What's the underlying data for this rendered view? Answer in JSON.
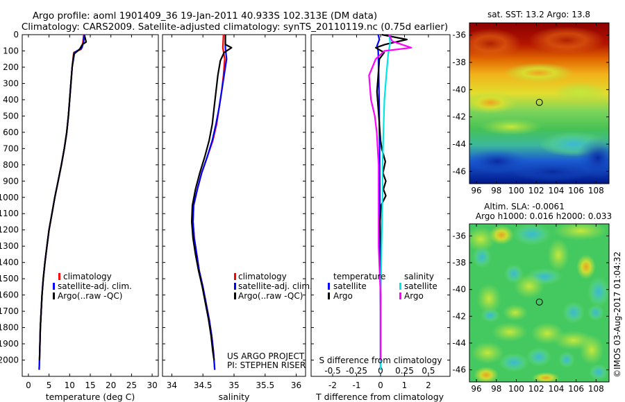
{
  "figure": {
    "title_line1": "Argo profile: aoml 1901409_36 19-Jan-2011 40.933S 102.313E (DM data)",
    "title_line2": "Climatology: CARS2009. Satellite-adjusted climatology: synTS_20110119.nc (0.75d earlier)",
    "credit": "©IMOS 03-Aug-2017 01:04:32",
    "project_line1": "US ARGO PROJECT",
    "project_line2": "PI: STEPHEN RISER"
  },
  "colors": {
    "climatology": "#ff0000",
    "satellite": "#0000ff",
    "argo": "#000000",
    "salinity_satellite": "#00e5e5",
    "salinity_argo": "#ff00ff"
  },
  "legends": {
    "profile": [
      "climatology",
      "satellite-adj. clim.",
      "Argo(..raw -QC)"
    ],
    "diff_temperature_title": "temperature",
    "diff_salinity_title": "salinity",
    "diff_satellite": "satellite",
    "diff_argo": "Argo"
  },
  "chart_data": [
    {
      "id": "temperature",
      "type": "line",
      "title": "",
      "xlabel": "temperature (deg C)",
      "ylabel": "",
      "xlim": [
        -1.5,
        31.5
      ],
      "ylim": [
        2100,
        0
      ],
      "xticks": [
        0,
        5,
        10,
        15,
        20,
        25,
        30
      ],
      "yticks": [
        0,
        100,
        200,
        300,
        400,
        500,
        600,
        700,
        800,
        900,
        1000,
        1100,
        1200,
        1300,
        1400,
        1500,
        1600,
        1700,
        1800,
        1900,
        2000
      ],
      "series": [
        {
          "name": "climatology",
          "color": "#ff0000",
          "points": [
            [
              13.4,
              0
            ],
            [
              13.2,
              50
            ],
            [
              12.8,
              90
            ],
            [
              11.0,
              110
            ],
            [
              10.6,
              200
            ],
            [
              10.3,
              300
            ],
            [
              10.0,
              400
            ],
            [
              9.7,
              500
            ],
            [
              9.3,
              600
            ],
            [
              8.7,
              700
            ],
            [
              8.0,
              800
            ],
            [
              7.2,
              900
            ],
            [
              6.4,
              1000
            ],
            [
              5.7,
              1100
            ],
            [
              5.0,
              1200
            ],
            [
              4.5,
              1300
            ],
            [
              4.0,
              1400
            ],
            [
              3.6,
              1500
            ],
            [
              3.3,
              1600
            ],
            [
              3.1,
              1700
            ],
            [
              2.9,
              1800
            ],
            [
              2.8,
              1900
            ],
            [
              2.7,
              2000
            ],
            [
              2.6,
              2060
            ]
          ]
        },
        {
          "name": "satellite-adj. clim.",
          "color": "#0000ff",
          "points": [
            [
              13.6,
              0
            ],
            [
              13.4,
              40
            ],
            [
              13.0,
              80
            ],
            [
              11.2,
              110
            ],
            [
              10.6,
              200
            ],
            [
              10.3,
              300
            ],
            [
              10.0,
              400
            ],
            [
              9.7,
              500
            ],
            [
              9.3,
              600
            ],
            [
              8.7,
              700
            ],
            [
              8.0,
              800
            ],
            [
              7.2,
              900
            ],
            [
              6.4,
              1000
            ],
            [
              5.7,
              1100
            ],
            [
              5.0,
              1200
            ],
            [
              4.5,
              1300
            ],
            [
              4.0,
              1400
            ],
            [
              3.6,
              1500
            ],
            [
              3.3,
              1600
            ],
            [
              3.1,
              1700
            ],
            [
              2.9,
              1800
            ],
            [
              2.8,
              1900
            ],
            [
              2.7,
              2000
            ],
            [
              2.6,
              2060
            ]
          ]
        },
        {
          "name": "Argo(..raw -QC)",
          "color": "#000000",
          "points": [
            [
              13.6,
              5
            ],
            [
              14.0,
              45
            ],
            [
              13.1,
              60
            ],
            [
              12.4,
              90
            ],
            [
              11.0,
              120
            ],
            [
              10.6,
              200
            ],
            [
              10.3,
              300
            ],
            [
              10.0,
              400
            ],
            [
              9.7,
              500
            ],
            [
              9.3,
              600
            ],
            [
              8.7,
              700
            ],
            [
              8.0,
              800
            ],
            [
              7.2,
              900
            ],
            [
              6.4,
              1000
            ],
            [
              5.7,
              1100
            ],
            [
              5.0,
              1200
            ],
            [
              4.5,
              1300
            ],
            [
              4.0,
              1400
            ],
            [
              3.6,
              1500
            ],
            [
              3.3,
              1600
            ],
            [
              3.1,
              1700
            ],
            [
              2.9,
              1800
            ],
            [
              2.8,
              1900
            ],
            [
              2.7,
              2000
            ]
          ]
        }
      ]
    },
    {
      "id": "salinity",
      "type": "line",
      "title": "",
      "xlabel": "salinity",
      "ylabel": "",
      "xlim": [
        33.85,
        36.15
      ],
      "ylim": [
        2100,
        0
      ],
      "xticks": [
        34,
        34.5,
        35,
        35.5,
        36
      ],
      "series": [
        {
          "name": "climatology",
          "color": "#ff0000",
          "points": [
            [
              34.83,
              0
            ],
            [
              34.82,
              80
            ],
            [
              34.85,
              150
            ],
            [
              34.83,
              250
            ],
            [
              34.8,
              350
            ],
            [
              34.76,
              450
            ],
            [
              34.72,
              550
            ],
            [
              34.66,
              650
            ],
            [
              34.57,
              750
            ],
            [
              34.48,
              850
            ],
            [
              34.41,
              950
            ],
            [
              34.35,
              1050
            ],
            [
              34.34,
              1150
            ],
            [
              34.36,
              1250
            ],
            [
              34.4,
              1350
            ],
            [
              34.44,
              1450
            ],
            [
              34.5,
              1550
            ],
            [
              34.55,
              1650
            ],
            [
              34.6,
              1750
            ],
            [
              34.64,
              1850
            ],
            [
              34.67,
              1950
            ],
            [
              34.69,
              2060
            ]
          ]
        },
        {
          "name": "satellite-adj. clim.",
          "color": "#0000ff",
          "points": [
            [
              34.86,
              0
            ],
            [
              34.86,
              80
            ],
            [
              34.88,
              150
            ],
            [
              34.84,
              250
            ],
            [
              34.8,
              350
            ],
            [
              34.76,
              450
            ],
            [
              34.71,
              550
            ],
            [
              34.65,
              650
            ],
            [
              34.57,
              750
            ],
            [
              34.48,
              850
            ],
            [
              34.41,
              950
            ],
            [
              34.35,
              1050
            ],
            [
              34.34,
              1150
            ],
            [
              34.36,
              1250
            ],
            [
              34.4,
              1350
            ],
            [
              34.44,
              1450
            ],
            [
              34.5,
              1550
            ],
            [
              34.55,
              1650
            ],
            [
              34.6,
              1750
            ],
            [
              34.64,
              1850
            ],
            [
              34.67,
              1950
            ],
            [
              34.69,
              2060
            ]
          ]
        },
        {
          "name": "Argo(..raw -QC)",
          "color": "#000000",
          "points": [
            [
              34.86,
              0
            ],
            [
              34.86,
              60
            ],
            [
              34.96,
              80
            ],
            [
              34.84,
              110
            ],
            [
              34.78,
              160
            ],
            [
              34.74,
              250
            ],
            [
              34.71,
              350
            ],
            [
              34.68,
              450
            ],
            [
              34.65,
              550
            ],
            [
              34.6,
              650
            ],
            [
              34.53,
              750
            ],
            [
              34.45,
              850
            ],
            [
              34.38,
              950
            ],
            [
              34.33,
              1050
            ],
            [
              34.32,
              1150
            ],
            [
              34.34,
              1250
            ],
            [
              34.38,
              1350
            ],
            [
              34.43,
              1450
            ],
            [
              34.49,
              1550
            ],
            [
              34.54,
              1650
            ],
            [
              34.59,
              1750
            ],
            [
              34.63,
              1850
            ],
            [
              34.66,
              1950
            ],
            [
              34.68,
              2000
            ]
          ]
        }
      ]
    },
    {
      "id": "difference",
      "type": "line",
      "title": "",
      "xlabel": "T difference from climatology",
      "x2label": "S difference from climatology",
      "xlim": [
        -2.9,
        2.9
      ],
      "ylim": [
        2100,
        0
      ],
      "xticks": [
        -2,
        -1,
        0,
        1,
        2
      ],
      "x2ticks": [
        -0.5,
        -0.25,
        0,
        0.25,
        0.5
      ],
      "x2tick_labels": [
        "-0.5",
        "-0.25",
        "0",
        "0.25",
        "0.5"
      ],
      "series": [
        {
          "name": "temperature satellite",
          "color": "#0000ff",
          "points": [
            [
              -0.1,
              0
            ],
            [
              -0.05,
              30
            ],
            [
              -0.15,
              70
            ],
            [
              -0.1,
              100
            ],
            [
              -0.08,
              200
            ],
            [
              -0.06,
              400
            ],
            [
              -0.04,
              700
            ],
            [
              -0.03,
              1000
            ],
            [
              -0.02,
              1300
            ],
            [
              0,
              1700
            ],
            [
              0,
              2060
            ]
          ]
        },
        {
          "name": "temperature Argo",
          "color": "#000000",
          "points": [
            [
              0.05,
              0
            ],
            [
              1.1,
              30
            ],
            [
              0.2,
              60
            ],
            [
              -0.2,
              80
            ],
            [
              0.15,
              110
            ],
            [
              -0.05,
              150
            ],
            [
              -0.1,
              250
            ],
            [
              -0.15,
              350
            ],
            [
              -0.1,
              450
            ],
            [
              -0.05,
              550
            ],
            [
              0,
              650
            ],
            [
              0.05,
              700
            ],
            [
              0.2,
              780
            ],
            [
              0.1,
              850
            ],
            [
              0.22,
              900
            ],
            [
              0.12,
              950
            ],
            [
              0.22,
              990
            ],
            [
              0.02,
              1050
            ],
            [
              -0.02,
              1150
            ],
            [
              0,
              1300
            ],
            [
              0,
              2000
            ]
          ]
        },
        {
          "name": "salinity satellite",
          "color": "#00e5e5",
          "points": [
            [
              0.09,
              0
            ],
            [
              0.1,
              50
            ],
            [
              0.08,
              120
            ],
            [
              0.06,
              250
            ],
            [
              0.04,
              400
            ],
            [
              0.03,
              600
            ],
            [
              0.02,
              800
            ],
            [
              0.02,
              1000
            ],
            [
              0.01,
              1300
            ],
            [
              0,
              1700
            ],
            [
              0,
              2060
            ]
          ]
        },
        {
          "name": "salinity Argo",
          "color": "#ff00ff",
          "points": [
            [
              0.09,
              0
            ],
            [
              0.12,
              40
            ],
            [
              0.32,
              80
            ],
            [
              0.04,
              100
            ],
            [
              -0.05,
              150
            ],
            [
              -0.12,
              250
            ],
            [
              -0.1,
              400
            ],
            [
              -0.06,
              500
            ],
            [
              -0.04,
              600
            ],
            [
              -0.02,
              800
            ],
            [
              -0.02,
              1000
            ],
            [
              -0.02,
              1300
            ],
            [
              0,
              1600
            ],
            [
              0,
              2000
            ]
          ]
        }
      ]
    },
    {
      "id": "sst_map",
      "type": "heatmap",
      "title": "sat. SST: 13.2 Argo: 13.8",
      "xticks": [
        96,
        98,
        100,
        102,
        104,
        106,
        108
      ],
      "yticks": [
        -36,
        -38,
        -40,
        -42,
        -44,
        -46
      ],
      "xlim": [
        95.3,
        109.3
      ],
      "ylim": [
        -46.9,
        -35.1
      ],
      "marker": {
        "lon": 102.313,
        "lat": -40.933
      }
    },
    {
      "id": "sla_map",
      "type": "heatmap",
      "title": "Altim. SLA: -0.0061",
      "subtitle": "Argo h1000: 0.016 h2000: 0.033",
      "xticks": [
        96,
        98,
        100,
        102,
        104,
        106,
        108
      ],
      "yticks": [
        -36,
        -38,
        -40,
        -42,
        -44,
        -46
      ],
      "xlim": [
        95.3,
        109.3
      ],
      "ylim": [
        -46.9,
        -35.1
      ],
      "marker": {
        "lon": 102.313,
        "lat": -40.933
      }
    }
  ]
}
